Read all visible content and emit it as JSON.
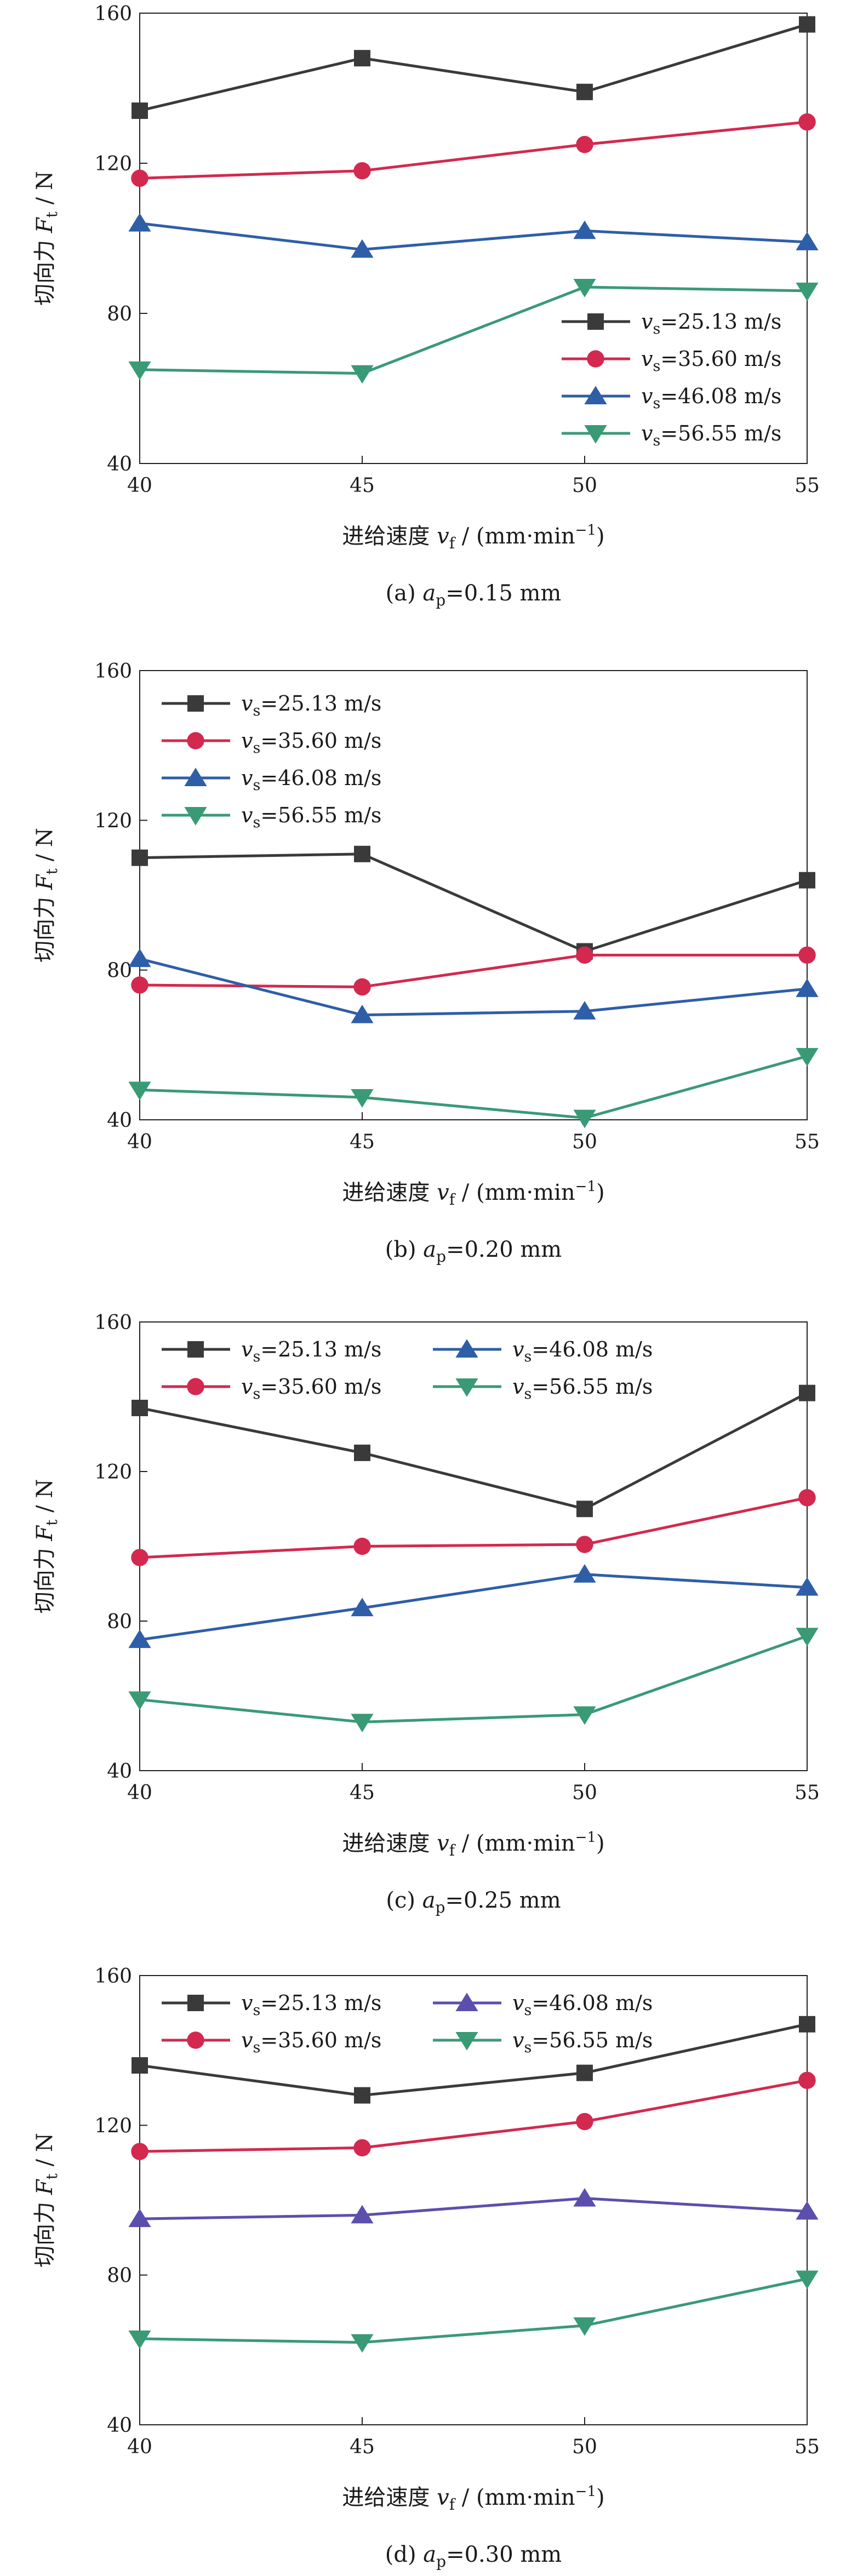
{
  "chart_data": [
    {
      "type": "line",
      "x": [
        40,
        45,
        50,
        55
      ],
      "xlim": [
        40,
        55
      ],
      "ylim": [
        40,
        160
      ],
      "yticks": [
        40,
        80,
        120,
        160
      ],
      "xlabel_prefix": "进给速度 ",
      "xlabel_var": "v",
      "xlabel_sub": "f",
      "xlabel_unit": " / (mm·min",
      "xlabel_unit_sup": "−1",
      "xlabel_unit_end": ")",
      "ylabel_prefix": "切向力 ",
      "ylabel_var": "F",
      "ylabel_sub": "t",
      "ylabel_unit": " / N",
      "caption_prefix": "(a) ",
      "caption_var": "a",
      "caption_sub": "p",
      "caption_value": "=0.15 mm",
      "legend_position": "bottom-right",
      "series": [
        {
          "name": "25.13 m/s",
          "var": "v",
          "sub": "s",
          "color": "#3a3a3a",
          "marker": "square",
          "values": [
            134,
            148,
            139,
            157
          ]
        },
        {
          "name": "35.60 m/s",
          "var": "v",
          "sub": "s",
          "color": "#d3294f",
          "marker": "circle",
          "values": [
            116,
            118,
            125,
            131
          ]
        },
        {
          "name": "46.08 m/s",
          "var": "v",
          "sub": "s",
          "color": "#2e5ea8",
          "marker": "triangle",
          "values": [
            104,
            97,
            102,
            99
          ]
        },
        {
          "name": "56.55 m/s",
          "var": "v",
          "sub": "s",
          "color": "#3a9a76",
          "marker": "triangle-down",
          "values": [
            65,
            64,
            87,
            86
          ]
        }
      ]
    },
    {
      "type": "line",
      "x": [
        40,
        45,
        50,
        55
      ],
      "xlim": [
        40,
        55
      ],
      "ylim": [
        40,
        160
      ],
      "yticks": [
        40,
        80,
        120,
        160
      ],
      "xlabel_prefix": "进给速度 ",
      "xlabel_var": "v",
      "xlabel_sub": "f",
      "xlabel_unit": " / (mm·min",
      "xlabel_unit_sup": "−1",
      "xlabel_unit_end": ")",
      "ylabel_prefix": "切向力 ",
      "ylabel_var": "F",
      "ylabel_sub": "t",
      "ylabel_unit": " / N",
      "caption_prefix": "(b) ",
      "caption_var": "a",
      "caption_sub": "p",
      "caption_value": "=0.20 mm",
      "legend_position": "top-left",
      "series": [
        {
          "name": "25.13 m/s",
          "var": "v",
          "sub": "s",
          "color": "#3a3a3a",
          "marker": "square",
          "values": [
            110,
            111,
            85,
            104
          ]
        },
        {
          "name": "35.60 m/s",
          "var": "v",
          "sub": "s",
          "color": "#d3294f",
          "marker": "circle",
          "values": [
            76,
            75.5,
            84,
            84
          ]
        },
        {
          "name": "46.08 m/s",
          "var": "v",
          "sub": "s",
          "color": "#2e5ea8",
          "marker": "triangle",
          "values": [
            83,
            68,
            69,
            75
          ]
        },
        {
          "name": "56.55 m/s",
          "var": "v",
          "sub": "s",
          "color": "#3a9a76",
          "marker": "triangle-down",
          "values": [
            48,
            46,
            40.5,
            57
          ]
        }
      ]
    },
    {
      "type": "line",
      "x": [
        40,
        45,
        50,
        55
      ],
      "xlim": [
        40,
        55
      ],
      "ylim": [
        40,
        160
      ],
      "yticks": [
        40,
        80,
        120,
        160
      ],
      "xlabel_prefix": "进给速度 ",
      "xlabel_var": "v",
      "xlabel_sub": "f",
      "xlabel_unit": " / (mm·min",
      "xlabel_unit_sup": "−1",
      "xlabel_unit_end": ")",
      "ylabel_prefix": "切向力 ",
      "ylabel_var": "F",
      "ylabel_sub": "t",
      "ylabel_unit": " / N",
      "caption_prefix": "(c) ",
      "caption_var": "a",
      "caption_sub": "p",
      "caption_value": "=0.25 mm",
      "legend_position": "top (two columns)",
      "series": [
        {
          "name": "25.13 m/s",
          "var": "v",
          "sub": "s",
          "color": "#3a3a3a",
          "marker": "square",
          "values": [
            137,
            125,
            110,
            141
          ]
        },
        {
          "name": "35.60 m/s",
          "var": "v",
          "sub": "s",
          "color": "#d3294f",
          "marker": "circle",
          "values": [
            97,
            100,
            100.5,
            113
          ]
        },
        {
          "name": "46.08 m/s",
          "var": "v",
          "sub": "s",
          "color": "#2e5ea8",
          "marker": "triangle",
          "values": [
            75,
            83.5,
            92.5,
            89
          ]
        },
        {
          "name": "56.55 m/s",
          "var": "v",
          "sub": "s",
          "color": "#3a9a76",
          "marker": "triangle-down",
          "values": [
            59,
            53,
            55,
            76
          ]
        }
      ]
    },
    {
      "type": "line",
      "x": [
        40,
        45,
        50,
        55
      ],
      "xlim": [
        40,
        55
      ],
      "ylim": [
        40,
        160
      ],
      "yticks": [
        40,
        80,
        120,
        160
      ],
      "xlabel_prefix": "进给速度 ",
      "xlabel_var": "v",
      "xlabel_sub": "f",
      "xlabel_unit": " / (mm·min",
      "xlabel_unit_sup": "−1",
      "xlabel_unit_end": ")",
      "ylabel_prefix": "切向力 ",
      "ylabel_var": "F",
      "ylabel_sub": "t",
      "ylabel_unit": " / N",
      "caption_prefix": "(d) ",
      "caption_var": "a",
      "caption_sub": "p",
      "caption_value": "=0.30 mm",
      "legend_position": "top (two columns)",
      "series": [
        {
          "name": "25.13 m/s",
          "var": "v",
          "sub": "s",
          "color": "#3a3a3a",
          "marker": "square",
          "values": [
            136,
            128,
            134,
            147
          ]
        },
        {
          "name": "35.60 m/s",
          "var": "v",
          "sub": "s",
          "color": "#d3294f",
          "marker": "circle",
          "values": [
            113,
            114,
            121,
            132
          ]
        },
        {
          "name": "46.08 m/s",
          "var": "v",
          "sub": "s",
          "color": "#5b4fae",
          "marker": "triangle",
          "values": [
            95,
            96,
            100.5,
            97
          ]
        },
        {
          "name": "56.55 m/s",
          "var": "v",
          "sub": "s",
          "color": "#3a9a76",
          "marker": "triangle-down",
          "values": [
            63,
            62,
            66.5,
            79
          ]
        }
      ]
    }
  ]
}
